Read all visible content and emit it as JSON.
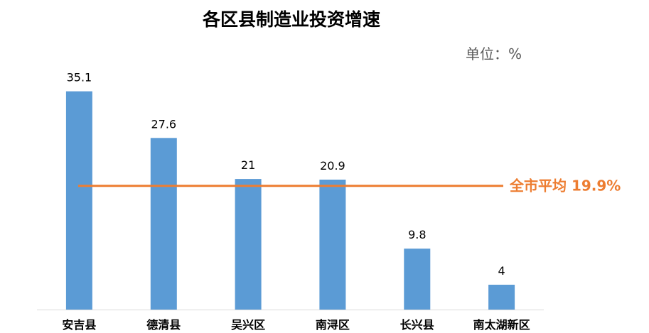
{
  "chart_data": {
    "type": "bar",
    "title": "各区县制造业投资增速",
    "unit": "单位：%",
    "categories": [
      "安吉县",
      "德清县",
      "吴兴区",
      "南浔区",
      "长兴县",
      "南太湖新区"
    ],
    "values": [
      35.1,
      27.6,
      21,
      20.9,
      9.8,
      4
    ],
    "value_labels": [
      "35.1",
      "27.6",
      "21",
      "20.9",
      "9.8",
      "4"
    ],
    "ylim": [
      0,
      37
    ],
    "grid": false,
    "reference_line": {
      "label": "全市平均 19.9%",
      "value": 19.9
    }
  },
  "colors": {
    "bar": "#5B9BD5",
    "reference_line": "#ED7D31",
    "axis": "#D9D9D9"
  }
}
